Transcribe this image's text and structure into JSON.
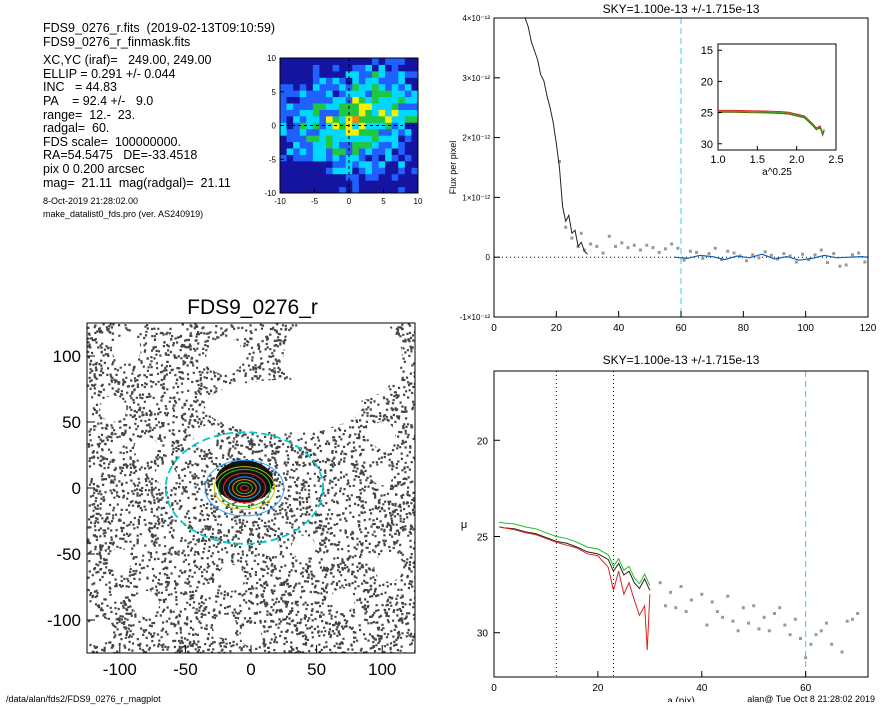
{
  "info": {
    "lines": [
      "FDS9_0276_r.fits  (2019-02-13T09:10:59)",
      "FDS9_0276_r_finmask.fits",
      "XC,YC (iraf)=   249.00, 249.00",
      "ELLIP = 0.291 +/- 0.044",
      "INC   = 44.83",
      "PA    = 92.4 +/-   9.0",
      "range=  12.-  23.",
      "radgal=  60.",
      "FDS scale=  100000000.",
      "RA=54.5475   DE=-33.4518",
      "pix 0 0.200 arcsec",
      "mag=  21.11  mag(radgal)=  21.11"
    ],
    "date": "8-Oct-2019 21:28:02.00",
    "program": "make_datalist0_fds.pro (ver. AS240919)"
  },
  "footer": {
    "left": "/data/alan/fds2/FDS9_0276_r_magplot",
    "right": "alan@  Tue Oct  8 21:28:02 2019"
  },
  "chart_data": [
    {
      "id": "residual-map",
      "type": "heatmap",
      "xlim": [
        -10,
        10
      ],
      "ylim": [
        -10,
        10
      ],
      "xticks": [
        -10,
        -5,
        0,
        5,
        10
      ],
      "yticks": [
        -10,
        -5,
        0,
        5,
        10
      ],
      "colormap": [
        "#1414a0",
        "#2060ff",
        "#00d8ff",
        "#20c840",
        "#f8f000",
        "#ff8000",
        "#ff1010",
        "#ffffff"
      ]
    },
    {
      "id": "image-panel",
      "type": "scatter",
      "title": "FDS9_0276_r",
      "xlim": [
        -125,
        125
      ],
      "ylim": [
        -125,
        125
      ],
      "xticks": [
        -100,
        -50,
        0,
        50,
        100
      ],
      "yticks": [
        -100,
        -50,
        0,
        50,
        100
      ],
      "ellipse_semi_major": [
        3,
        6,
        9,
        12,
        16,
        20,
        23,
        30,
        60
      ],
      "ellipse_colors": [
        "#ff2020",
        "#20c020",
        "#ff8000",
        "#20a0ff",
        "#ff2020",
        "#20c020",
        "#c0c000",
        "#20a0ff",
        "#00c8c8"
      ],
      "ellipticity": 0.291
    },
    {
      "id": "flux-profile",
      "type": "line",
      "title": "SKY=1.100e-13 +/-1.715e-13",
      "ylabel": "Flux per pixel",
      "xlim": [
        0,
        120
      ],
      "ylim": [
        -1e-12,
        4e-12
      ],
      "xticks": [
        0,
        20,
        40,
        60,
        80,
        100,
        120
      ],
      "ytick_labels": [
        "-1×10⁻¹²",
        "0",
        "1×10⁻¹²",
        "2×10⁻¹²",
        "3×10⁻¹²",
        "4×10⁻¹²"
      ],
      "ytick_values": [
        -1e-12,
        0,
        1e-12,
        2e-12,
        3e-12,
        4e-12
      ],
      "vline": 60,
      "series": [
        {
          "x": [
            10,
            11,
            12,
            13,
            14,
            15,
            16,
            17,
            18,
            19,
            20,
            21,
            22,
            23,
            24,
            25,
            26,
            27,
            28,
            29,
            30
          ],
          "values": [
            4e-12,
            3.85e-12,
            3.6e-12,
            3.45e-12,
            3.3e-12,
            3.05e-12,
            2.95e-12,
            2.7e-12,
            2.5e-12,
            2.25e-12,
            1.9e-12,
            1.5e-12,
            8.5e-13,
            6e-13,
            7e-13,
            4e-13,
            4.5e-13,
            1.8e-13,
            2.5e-13,
            1e-13,
            5e-14
          ]
        },
        {
          "x": [
            58,
            62,
            66,
            70,
            74,
            78,
            82,
            86,
            90,
            94,
            98,
            102,
            106,
            110,
            114,
            118,
            120
          ],
          "values": [
            0,
            -2e-14,
            3e-14,
            1e-14,
            -4e-14,
            2e-14,
            -1e-14,
            5e-14,
            -3e-14,
            1e-14,
            -5e-14,
            -2e-14,
            3e-14,
            -1e-14,
            0,
            1e-14,
            0
          ]
        }
      ],
      "points": {
        "x": [
          21,
          23,
          25,
          27,
          28,
          29,
          31,
          33,
          35,
          37,
          39,
          41,
          43,
          45,
          47,
          49,
          51,
          53,
          55,
          57,
          59,
          61,
          63,
          65,
          67,
          69,
          71,
          73,
          75,
          77,
          79,
          81,
          83,
          85,
          87,
          89,
          91,
          93,
          95,
          97,
          99,
          101,
          103,
          105,
          107,
          109,
          111,
          113,
          115,
          117,
          119
        ],
        "values": [
          1.6e-12,
          5e-13,
          3.2e-13,
          1.8e-13,
          4e-13,
          1.2e-13,
          2.2e-13,
          1.8e-13,
          7e-14,
          3.5e-13,
          1.8e-13,
          2.4e-13,
          1.6e-13,
          2e-13,
          1.2e-13,
          2e-13,
          1.6e-13,
          8e-14,
          1.4e-13,
          2.2e-13,
          1.5e-13,
          -5e-14,
          1e-13,
          8e-14,
          -2e-14,
          6e-14,
          1.5e-13,
          -4e-14,
          1e-13,
          7e-14,
          2e-14,
          -6e-14,
          4e-14,
          -1e-14,
          9e-14,
          3e-14,
          -3e-14,
          6e-14,
          2e-14,
          -8e-14,
          5e-14,
          -4e-14,
          4e-14,
          1.2e-13,
          -9e-14,
          6e-14,
          -1.5e-13,
          -1.3e-13,
          4e-14,
          7e-14,
          -8e-14
        ]
      }
    },
    {
      "id": "inset-profile",
      "type": "line",
      "xlabel": "a^0.25",
      "xlim": [
        1.0,
        2.5
      ],
      "ylim": [
        31,
        14
      ],
      "xticks": [
        1.0,
        1.5,
        2.0,
        2.5
      ],
      "yticks": [
        15,
        20,
        25,
        30
      ],
      "series": [
        {
          "x": [
            1.0,
            1.2,
            1.4,
            1.6,
            1.8,
            1.9,
            2.0,
            2.1,
            2.15,
            2.2,
            2.25,
            2.3,
            2.33,
            2.35
          ],
          "values": [
            24.8,
            24.8,
            24.85,
            24.9,
            25.0,
            25.1,
            25.4,
            25.7,
            26.3,
            26.9,
            27.6,
            27.3,
            28.5,
            27.8
          ]
        }
      ]
    },
    {
      "id": "mu-profile",
      "type": "line",
      "title": "SKY=1.100e-13 +/-1.715e-13",
      "xlabel": "a (pix)",
      "ylabel": "μ",
      "xlim": [
        0,
        72
      ],
      "ylim": [
        32.3,
        16.4
      ],
      "xticks": [
        0,
        20,
        40,
        60
      ],
      "yticks": [
        20,
        25,
        30
      ],
      "vlines": [
        12,
        23
      ],
      "vline_cyan": 60,
      "series": [
        {
          "x": [
            1,
            2,
            4,
            6,
            8,
            10,
            12,
            14,
            16,
            18,
            20,
            22,
            23,
            24,
            25,
            26,
            27,
            28,
            29,
            30
          ],
          "values": [
            24.5,
            24.55,
            24.6,
            24.75,
            24.85,
            25.05,
            25.25,
            25.35,
            25.55,
            25.8,
            25.9,
            26.2,
            26.8,
            26.4,
            27.0,
            26.8,
            27.4,
            27.7,
            27.2,
            27.8
          ]
        }
      ],
      "red_series": {
        "x": [
          1,
          2,
          4,
          6,
          8,
          10,
          12,
          14,
          16,
          18,
          20,
          22,
          23,
          24,
          25,
          26,
          27,
          28,
          29,
          29.5,
          30
        ],
        "values": [
          24.5,
          24.55,
          24.65,
          24.8,
          24.9,
          25.1,
          25.3,
          25.45,
          25.6,
          25.9,
          26.0,
          26.6,
          27.8,
          26.8,
          28.0,
          27.4,
          28.3,
          29.1,
          28.6,
          30.9,
          28.0
        ]
      },
      "points": {
        "x": [
          32,
          33,
          34,
          35,
          36,
          37,
          38,
          40,
          41,
          42,
          43,
          44,
          45,
          46,
          47,
          48,
          49,
          50,
          51,
          52,
          53,
          54,
          55,
          56,
          57,
          58,
          59,
          60,
          61,
          62,
          63,
          64,
          65,
          67,
          68,
          69,
          70
        ],
        "values": [
          27.4,
          28.6,
          27.9,
          28.7,
          27.6,
          28.9,
          28.3,
          28.0,
          29.6,
          28.4,
          28.9,
          29.2,
          28.1,
          29.4,
          29.9,
          28.7,
          29.5,
          28.6,
          29.8,
          29.2,
          29.9,
          29.0,
          28.7,
          29.6,
          30.1,
          29.3,
          30.3,
          31.3,
          30.6,
          30.1,
          29.9,
          29.5,
          30.6,
          31.0,
          29.4,
          29.3,
          29.0
        ]
      }
    }
  ]
}
